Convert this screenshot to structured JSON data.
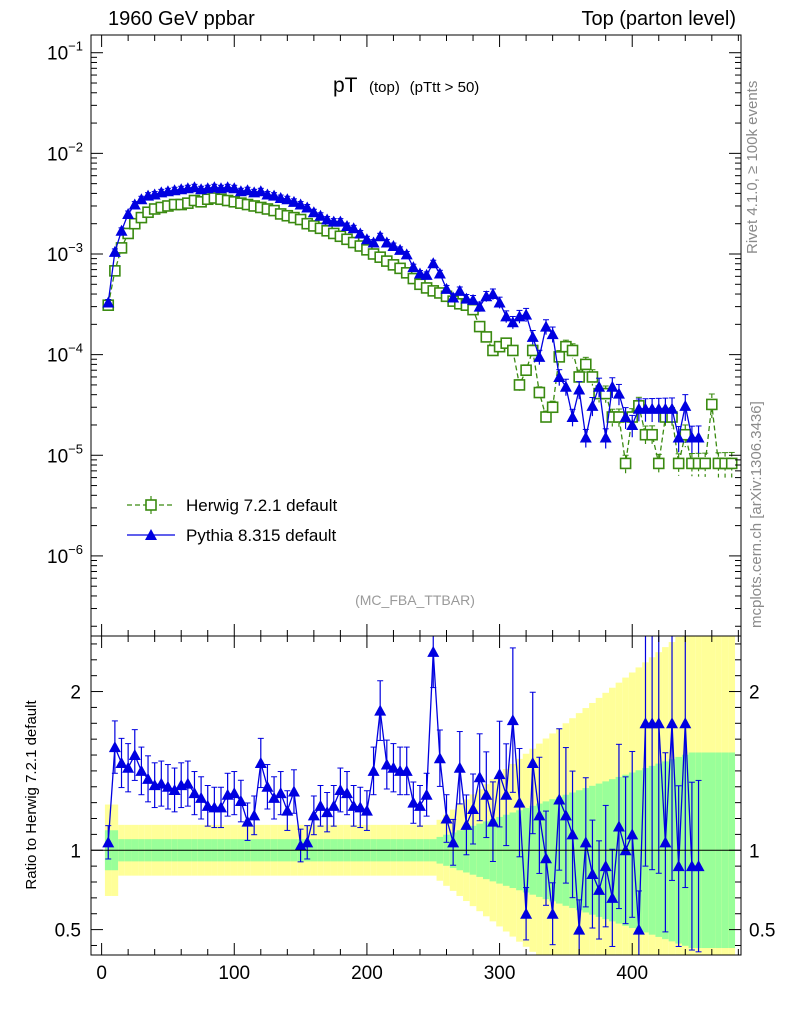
{
  "header": {
    "left": "1960 GeV ppbar",
    "right": "Top (parton level)"
  },
  "plot_title": {
    "main": "pT",
    "sub": "(top)",
    "cut": "(pTtt > 50)"
  },
  "watermark": "(MC_FBA_TTBAR)",
  "side_labels": {
    "rivet": "Rivet 4.1.0, ≥ 100k events",
    "mcplots": "mcplots.cern.ch [arXiv:1306.3436]"
  },
  "legend": [
    {
      "label": "Herwig 7.2.1 default"
    },
    {
      "label": "Pythia 8.315 default"
    }
  ],
  "colors": {
    "herwig": "#3a8a10",
    "pythia": "#0000e0",
    "band_inner": "#99ff99",
    "band_outer": "#ffff99"
  },
  "chart_data": [
    {
      "type": "line",
      "title": "pT (top) (pTtt > 50)",
      "xlabel": "",
      "ylabel": "",
      "yscale": "log",
      "ylim": [
        1.6e-07,
        0.15
      ],
      "xlim": [
        -8,
        482
      ],
      "y_ticks": [
        {
          "value": 0.1,
          "label": "10",
          "exp": "−1"
        },
        {
          "value": 0.01,
          "label": "10",
          "exp": "−2"
        },
        {
          "value": 0.001,
          "label": "10",
          "exp": "−3"
        },
        {
          "value": 0.0001,
          "label": "10",
          "exp": "−4"
        },
        {
          "value": 1e-05,
          "label": "10",
          "exp": "−5"
        },
        {
          "value": 1e-06,
          "label": "10",
          "exp": "−6"
        }
      ],
      "series": [
        {
          "name": "Herwig 7.2.1 default",
          "marker": "open-square",
          "x": [
            5,
            10,
            15,
            20,
            25,
            30,
            35,
            40,
            45,
            50,
            55,
            60,
            65,
            70,
            75,
            80,
            85,
            90,
            95,
            100,
            105,
            110,
            115,
            120,
            125,
            130,
            135,
            140,
            145,
            150,
            155,
            160,
            165,
            170,
            175,
            180,
            185,
            190,
            195,
            200,
            205,
            210,
            215,
            220,
            225,
            230,
            235,
            240,
            245,
            250,
            255,
            260,
            265,
            270,
            275,
            280,
            285,
            290,
            295,
            300,
            305,
            310,
            315,
            320,
            325,
            330,
            335,
            340,
            345,
            350,
            355,
            360,
            365,
            370,
            375,
            380,
            385,
            390,
            395,
            400,
            405,
            410,
            415,
            420,
            425,
            430,
            435,
            440,
            445,
            450,
            455,
            460,
            465,
            470,
            475
          ],
          "y": [
            0.00031,
            0.00068,
            0.00115,
            0.0016,
            0.002,
            0.0023,
            0.0026,
            0.0028,
            0.0029,
            0.003,
            0.0031,
            0.0031,
            0.0032,
            0.0034,
            0.0033,
            0.0035,
            0.0036,
            0.0035,
            0.0034,
            0.0033,
            0.0032,
            0.0031,
            0.003,
            0.0029,
            0.0028,
            0.0027,
            0.0025,
            0.0024,
            0.0023,
            0.0022,
            0.002,
            0.0019,
            0.0018,
            0.0017,
            0.0016,
            0.0015,
            0.0014,
            0.0013,
            0.0012,
            0.0011,
            0.001,
            0.00093,
            0.00085,
            0.00078,
            0.00072,
            0.00065,
            0.00057,
            0.0005,
            0.00046,
            0.00043,
            0.00041,
            0.00038,
            0.00034,
            0.00032,
            0.00031,
            0.00028,
            0.00019,
            0.00015,
            0.00011,
            0.00012,
            0.00013,
            0.00011,
            5e-05,
            7e-05,
            0.00011,
            4.2e-05,
            2.4e-05,
            3e-05,
            9.5e-05,
            0.00012,
            0.00011,
            6e-05,
            8e-05,
            6e-05,
            4.1e-05,
            4.1e-05,
            2.4e-05,
            2.4e-05,
            8.3e-06,
            2.4e-05,
            3.1e-05,
            1.6e-05,
            1.6e-05,
            8.3e-06,
            2.4e-05,
            2.4e-05,
            8.3e-06,
            1.6e-05,
            8.3e-06,
            8.3e-06,
            8.3e-06,
            3.2e-05,
            8.3e-06,
            8.3e-06,
            8.3e-06
          ],
          "err_rel": 0.06
        },
        {
          "name": "Pythia 8.315 default",
          "marker": "filled-triangle",
          "x": [
            5,
            10,
            15,
            20,
            25,
            30,
            35,
            40,
            45,
            50,
            55,
            60,
            65,
            70,
            75,
            80,
            85,
            90,
            95,
            100,
            105,
            110,
            115,
            120,
            125,
            130,
            135,
            140,
            145,
            150,
            155,
            160,
            165,
            170,
            175,
            180,
            185,
            190,
            195,
            200,
            205,
            210,
            215,
            220,
            225,
            230,
            235,
            240,
            245,
            250,
            255,
            260,
            265,
            270,
            275,
            280,
            285,
            290,
            295,
            300,
            305,
            310,
            315,
            320,
            325,
            330,
            335,
            340,
            345,
            350,
            355,
            360,
            365,
            370,
            375,
            380,
            385,
            390,
            395,
            400,
            405,
            410,
            415,
            420,
            425,
            430,
            435,
            440,
            445,
            450
          ],
          "y": [
            0.00033,
            0.00105,
            0.0017,
            0.0025,
            0.0031,
            0.0035,
            0.0038,
            0.0039,
            0.0041,
            0.0042,
            0.0043,
            0.0044,
            0.0045,
            0.0046,
            0.0044,
            0.0045,
            0.0046,
            0.0045,
            0.0046,
            0.0045,
            0.0042,
            0.0043,
            0.0041,
            0.0042,
            0.0039,
            0.0038,
            0.0036,
            0.0035,
            0.0033,
            0.0031,
            0.0029,
            0.0026,
            0.0024,
            0.0022,
            0.0021,
            0.0021,
            0.0019,
            0.0018,
            0.0016,
            0.0014,
            0.0013,
            0.0015,
            0.0013,
            0.0012,
            0.0011,
            0.00099,
            0.00074,
            0.00064,
            0.00062,
            0.00081,
            0.00064,
            0.00045,
            0.00037,
            0.00043,
            0.00036,
            0.00035,
            0.0003,
            0.00038,
            0.0004,
            0.00033,
            0.00024,
            0.00021,
            0.00024,
            0.00025,
            0.00015,
            9.5e-05,
            0.00019,
            0.00016,
            6e-05,
            4.8e-05,
            2.4e-05,
            4.5e-05,
            1.5e-05,
            3.1e-05,
            4.8e-05,
            1.5e-05,
            4.8e-05,
            4.1e-05,
            2.4e-05,
            2e-05,
            2.9e-05,
            2.9e-05,
            2.9e-05,
            2.9e-05,
            2.9e-05,
            2.9e-05,
            1.5e-05,
            3.1e-05,
            1.5e-05,
            1.5e-05
          ],
          "err_rel": 0.07
        }
      ]
    },
    {
      "type": "line",
      "title": "",
      "xlabel": "",
      "ylabel": "Ratio to Herwig 7.2.1 default",
      "ylim": [
        0.34,
        2.35
      ],
      "xlim": [
        -8,
        482
      ],
      "x_ticks": [
        0,
        100,
        200,
        300,
        400
      ],
      "y_ticks": [
        0.5,
        1,
        2
      ],
      "series": [
        {
          "name": "Pythia 8.315 default / Herwig 7.2.1 default",
          "x": [
            5,
            10,
            15,
            20,
            25,
            30,
            35,
            40,
            45,
            50,
            55,
            60,
            65,
            70,
            75,
            80,
            85,
            90,
            95,
            100,
            105,
            110,
            115,
            120,
            125,
            130,
            135,
            140,
            145,
            150,
            155,
            160,
            165,
            170,
            175,
            180,
            185,
            190,
            195,
            200,
            205,
            210,
            215,
            220,
            225,
            230,
            235,
            240,
            245,
            250,
            255,
            260,
            265,
            270,
            275,
            280,
            285,
            290,
            295,
            300,
            305,
            310,
            315,
            320,
            325,
            330,
            335,
            340,
            345,
            350,
            355,
            360,
            365,
            370,
            375,
            380,
            385,
            390,
            395,
            400,
            405,
            410,
            415,
            420,
            425,
            430,
            435,
            440,
            445,
            450
          ],
          "y": [
            1.05,
            1.65,
            1.55,
            1.52,
            1.6,
            1.5,
            1.45,
            1.41,
            1.42,
            1.4,
            1.38,
            1.41,
            1.42,
            1.36,
            1.33,
            1.28,
            1.27,
            1.27,
            1.35,
            1.36,
            1.31,
            1.18,
            1.22,
            1.55,
            1.4,
            1.33,
            1.36,
            1.25,
            1.37,
            1.03,
            1.05,
            1.22,
            1.28,
            1.24,
            1.28,
            1.38,
            1.36,
            1.28,
            1.27,
            1.25,
            1.5,
            1.88,
            1.54,
            1.52,
            1.5,
            1.5,
            1.3,
            1.28,
            1.35,
            2.25,
            1.58,
            1.2,
            1.05,
            1.52,
            1.16,
            1.26,
            1.46,
            1.35,
            1.18,
            1.48,
            1.35,
            1.82,
            1.3,
            0.6,
            1.55,
            1.22,
            0.95,
            0.6,
            1.32,
            1.22,
            1.1,
            0.5,
            1.05,
            0.85,
            0.75,
            0.9,
            0.7,
            1.15,
            1.0,
            1.1,
            0.5,
            1.8,
            1.8,
            1.8,
            1.05,
            1.8,
            0.9,
            1.8,
            0.9,
            0.9
          ],
          "err_rel": 0.1
        }
      ],
      "band_rel_inner": 0.07,
      "band_rel_outer": 0.16
    }
  ]
}
